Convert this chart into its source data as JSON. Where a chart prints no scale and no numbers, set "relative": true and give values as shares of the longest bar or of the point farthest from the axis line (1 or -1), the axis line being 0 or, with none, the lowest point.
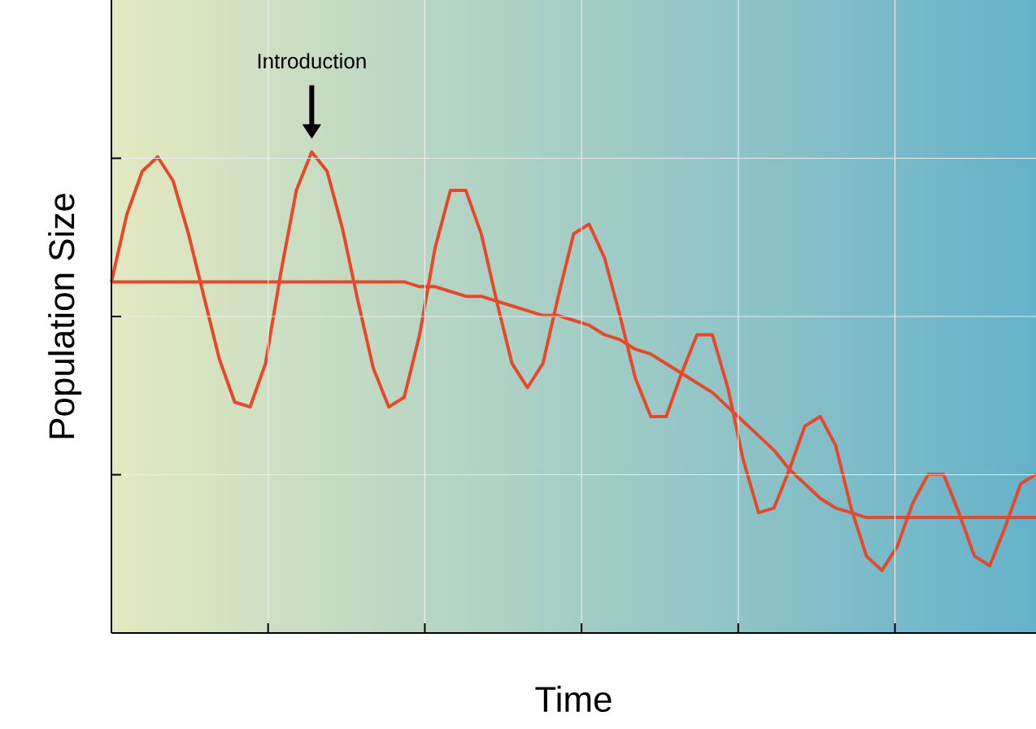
{
  "chart_data": {
    "type": "line",
    "relative": true,
    "xlabel": "Time",
    "ylabel": "Population Size",
    "grid": true,
    "marker": "none",
    "line_style": "solid",
    "categories": [
      null,
      null,
      null,
      null,
      null,
      null,
      null,
      null,
      null,
      null,
      null,
      null,
      null,
      null,
      null,
      null,
      null,
      null,
      null,
      null,
      null,
      null,
      null,
      null,
      null,
      null,
      null,
      null,
      null,
      null,
      null,
      null,
      null,
      null,
      null,
      null,
      null,
      null,
      null,
      null,
      null,
      null,
      null,
      null,
      null,
      null,
      null,
      null,
      null,
      null,
      null,
      null,
      null,
      null,
      null,
      null,
      null,
      null,
      null,
      null,
      null
    ],
    "series": [
      {
        "color": "#e8482a",
        "values": [
          0.73,
          0.87,
          0.96,
          0.99,
          0.94,
          0.83,
          0.7,
          0.57,
          0.48,
          0.47,
          0.56,
          0.75,
          0.92,
          1.0,
          0.96,
          0.84,
          0.69,
          0.55,
          0.47,
          0.49,
          0.62,
          0.8,
          0.92,
          0.92,
          0.83,
          0.69,
          0.56,
          0.51,
          0.56,
          0.7,
          0.83,
          0.85,
          0.78,
          0.66,
          0.53,
          0.45,
          0.45,
          0.54,
          0.62,
          0.62,
          0.51,
          0.36,
          0.25,
          0.26,
          0.34,
          0.43,
          0.45,
          0.39,
          0.26,
          0.16,
          0.13,
          0.18,
          0.27,
          0.33,
          0.33,
          0.25,
          0.16,
          0.14,
          0.22,
          0.31,
          0.33
        ]
      },
      {
        "color": "#e8482a",
        "values": [
          0.73,
          0.73,
          0.73,
          0.73,
          0.73,
          0.73,
          0.73,
          0.73,
          0.73,
          0.73,
          0.73,
          0.73,
          0.73,
          0.73,
          0.73,
          0.73,
          0.73,
          0.73,
          0.73,
          0.73,
          0.72,
          0.72,
          0.71,
          0.7,
          0.7,
          0.69,
          0.68,
          0.67,
          0.66,
          0.66,
          0.65,
          0.64,
          0.62,
          0.61,
          0.59,
          0.58,
          0.56,
          0.54,
          0.52,
          0.5,
          0.47,
          0.44,
          0.41,
          0.38,
          0.34,
          0.31,
          0.28,
          0.26,
          0.25,
          0.24,
          0.24,
          0.24,
          0.24,
          0.24,
          0.24,
          0.24,
          0.24,
          0.24,
          0.24,
          0.24,
          0.24
        ]
      }
    ],
    "annotations": [
      "Introduction"
    ]
  }
}
